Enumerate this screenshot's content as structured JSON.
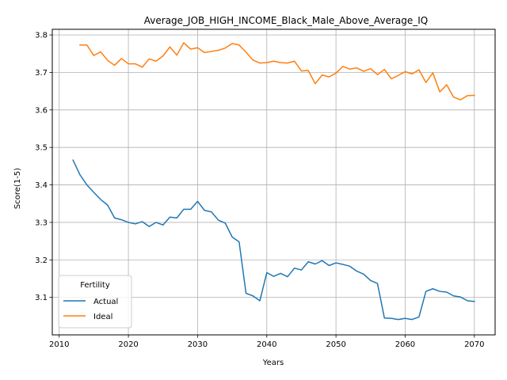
{
  "chart_data": {
    "type": "line",
    "title": "Average_JOB_HIGH_INCOME_Black_Male_Above_Average_IQ",
    "xlabel": "Years",
    "ylabel": "Score(1-5)",
    "xlim": [
      2009,
      2073
    ],
    "ylim": [
      3.0,
      3.815
    ],
    "xticks": [
      2010,
      2020,
      2030,
      2040,
      2050,
      2060,
      2070
    ],
    "yticks": [
      3.1,
      3.2,
      3.3,
      3.4,
      3.5,
      3.6,
      3.7,
      3.8
    ],
    "xtick_labels": [
      "2010",
      "2020",
      "2030",
      "2040",
      "2050",
      "2060",
      "2070"
    ],
    "ytick_labels": [
      "3.1",
      "3.2",
      "3.3",
      "3.4",
      "3.5",
      "3.6",
      "3.7",
      "3.8"
    ],
    "grid": true,
    "legend": {
      "title": "Fertility",
      "placement": "bottom-left"
    },
    "series": [
      {
        "name": "Actual",
        "color": "#1f77b4",
        "x": [
          2012,
          2013,
          2014,
          2015,
          2016,
          2017,
          2018,
          2019,
          2020,
          2021,
          2022,
          2023,
          2024,
          2025,
          2026,
          2027,
          2028,
          2029,
          2030,
          2031,
          2032,
          2033,
          2034,
          2035,
          2036,
          2037,
          2038,
          2039,
          2040,
          2041,
          2042,
          2043,
          2044,
          2045,
          2046,
          2047,
          2048,
          2049,
          2050,
          2051,
          2052,
          2053,
          2054,
          2055,
          2056,
          2057,
          2058,
          2059,
          2060,
          2061,
          2062,
          2063,
          2064,
          2065,
          2066,
          2067,
          2068,
          2069,
          2070
        ],
        "y": [
          3.466,
          3.427,
          3.4,
          3.38,
          3.361,
          3.346,
          3.312,
          3.307,
          3.3,
          3.296,
          3.302,
          3.289,
          3.3,
          3.293,
          3.314,
          3.312,
          3.335,
          3.335,
          3.356,
          3.332,
          3.328,
          3.306,
          3.298,
          3.261,
          3.248,
          3.111,
          3.104,
          3.091,
          3.166,
          3.156,
          3.164,
          3.155,
          3.178,
          3.173,
          3.195,
          3.189,
          3.198,
          3.185,
          3.192,
          3.188,
          3.183,
          3.17,
          3.162,
          3.145,
          3.137,
          3.045,
          3.044,
          3.041,
          3.044,
          3.041,
          3.048,
          3.116,
          3.123,
          3.116,
          3.114,
          3.104,
          3.101,
          3.091,
          3.089
        ]
      },
      {
        "name": "Ideal",
        "color": "#ff7f0e",
        "x": [
          2013,
          2014,
          2015,
          2016,
          2017,
          2018,
          2019,
          2020,
          2021,
          2022,
          2023,
          2024,
          2025,
          2026,
          2027,
          2028,
          2029,
          2030,
          2031,
          2032,
          2033,
          2034,
          2035,
          2036,
          2037,
          2038,
          2039,
          2040,
          2041,
          2042,
          2043,
          2044,
          2045,
          2046,
          2047,
          2048,
          2049,
          2050,
          2051,
          2052,
          2053,
          2054,
          2055,
          2056,
          2057,
          2058,
          2059,
          2060,
          2061,
          2062,
          2063,
          2064,
          2065,
          2066,
          2067,
          2068,
          2069,
          2070
        ],
        "y": [
          3.773,
          3.773,
          3.745,
          3.755,
          3.732,
          3.719,
          3.737,
          3.723,
          3.723,
          3.714,
          3.736,
          3.73,
          3.744,
          3.768,
          3.746,
          3.779,
          3.762,
          3.766,
          3.753,
          3.756,
          3.759,
          3.765,
          3.777,
          3.773,
          3.754,
          3.733,
          3.725,
          3.726,
          3.73,
          3.726,
          3.725,
          3.73,
          3.704,
          3.705,
          3.67,
          3.693,
          3.688,
          3.698,
          3.716,
          3.709,
          3.712,
          3.703,
          3.71,
          3.694,
          3.708,
          3.683,
          3.692,
          3.702,
          3.696,
          3.707,
          3.673,
          3.699,
          3.648,
          3.667,
          3.634,
          3.627,
          3.638,
          3.639
        ]
      }
    ]
  }
}
